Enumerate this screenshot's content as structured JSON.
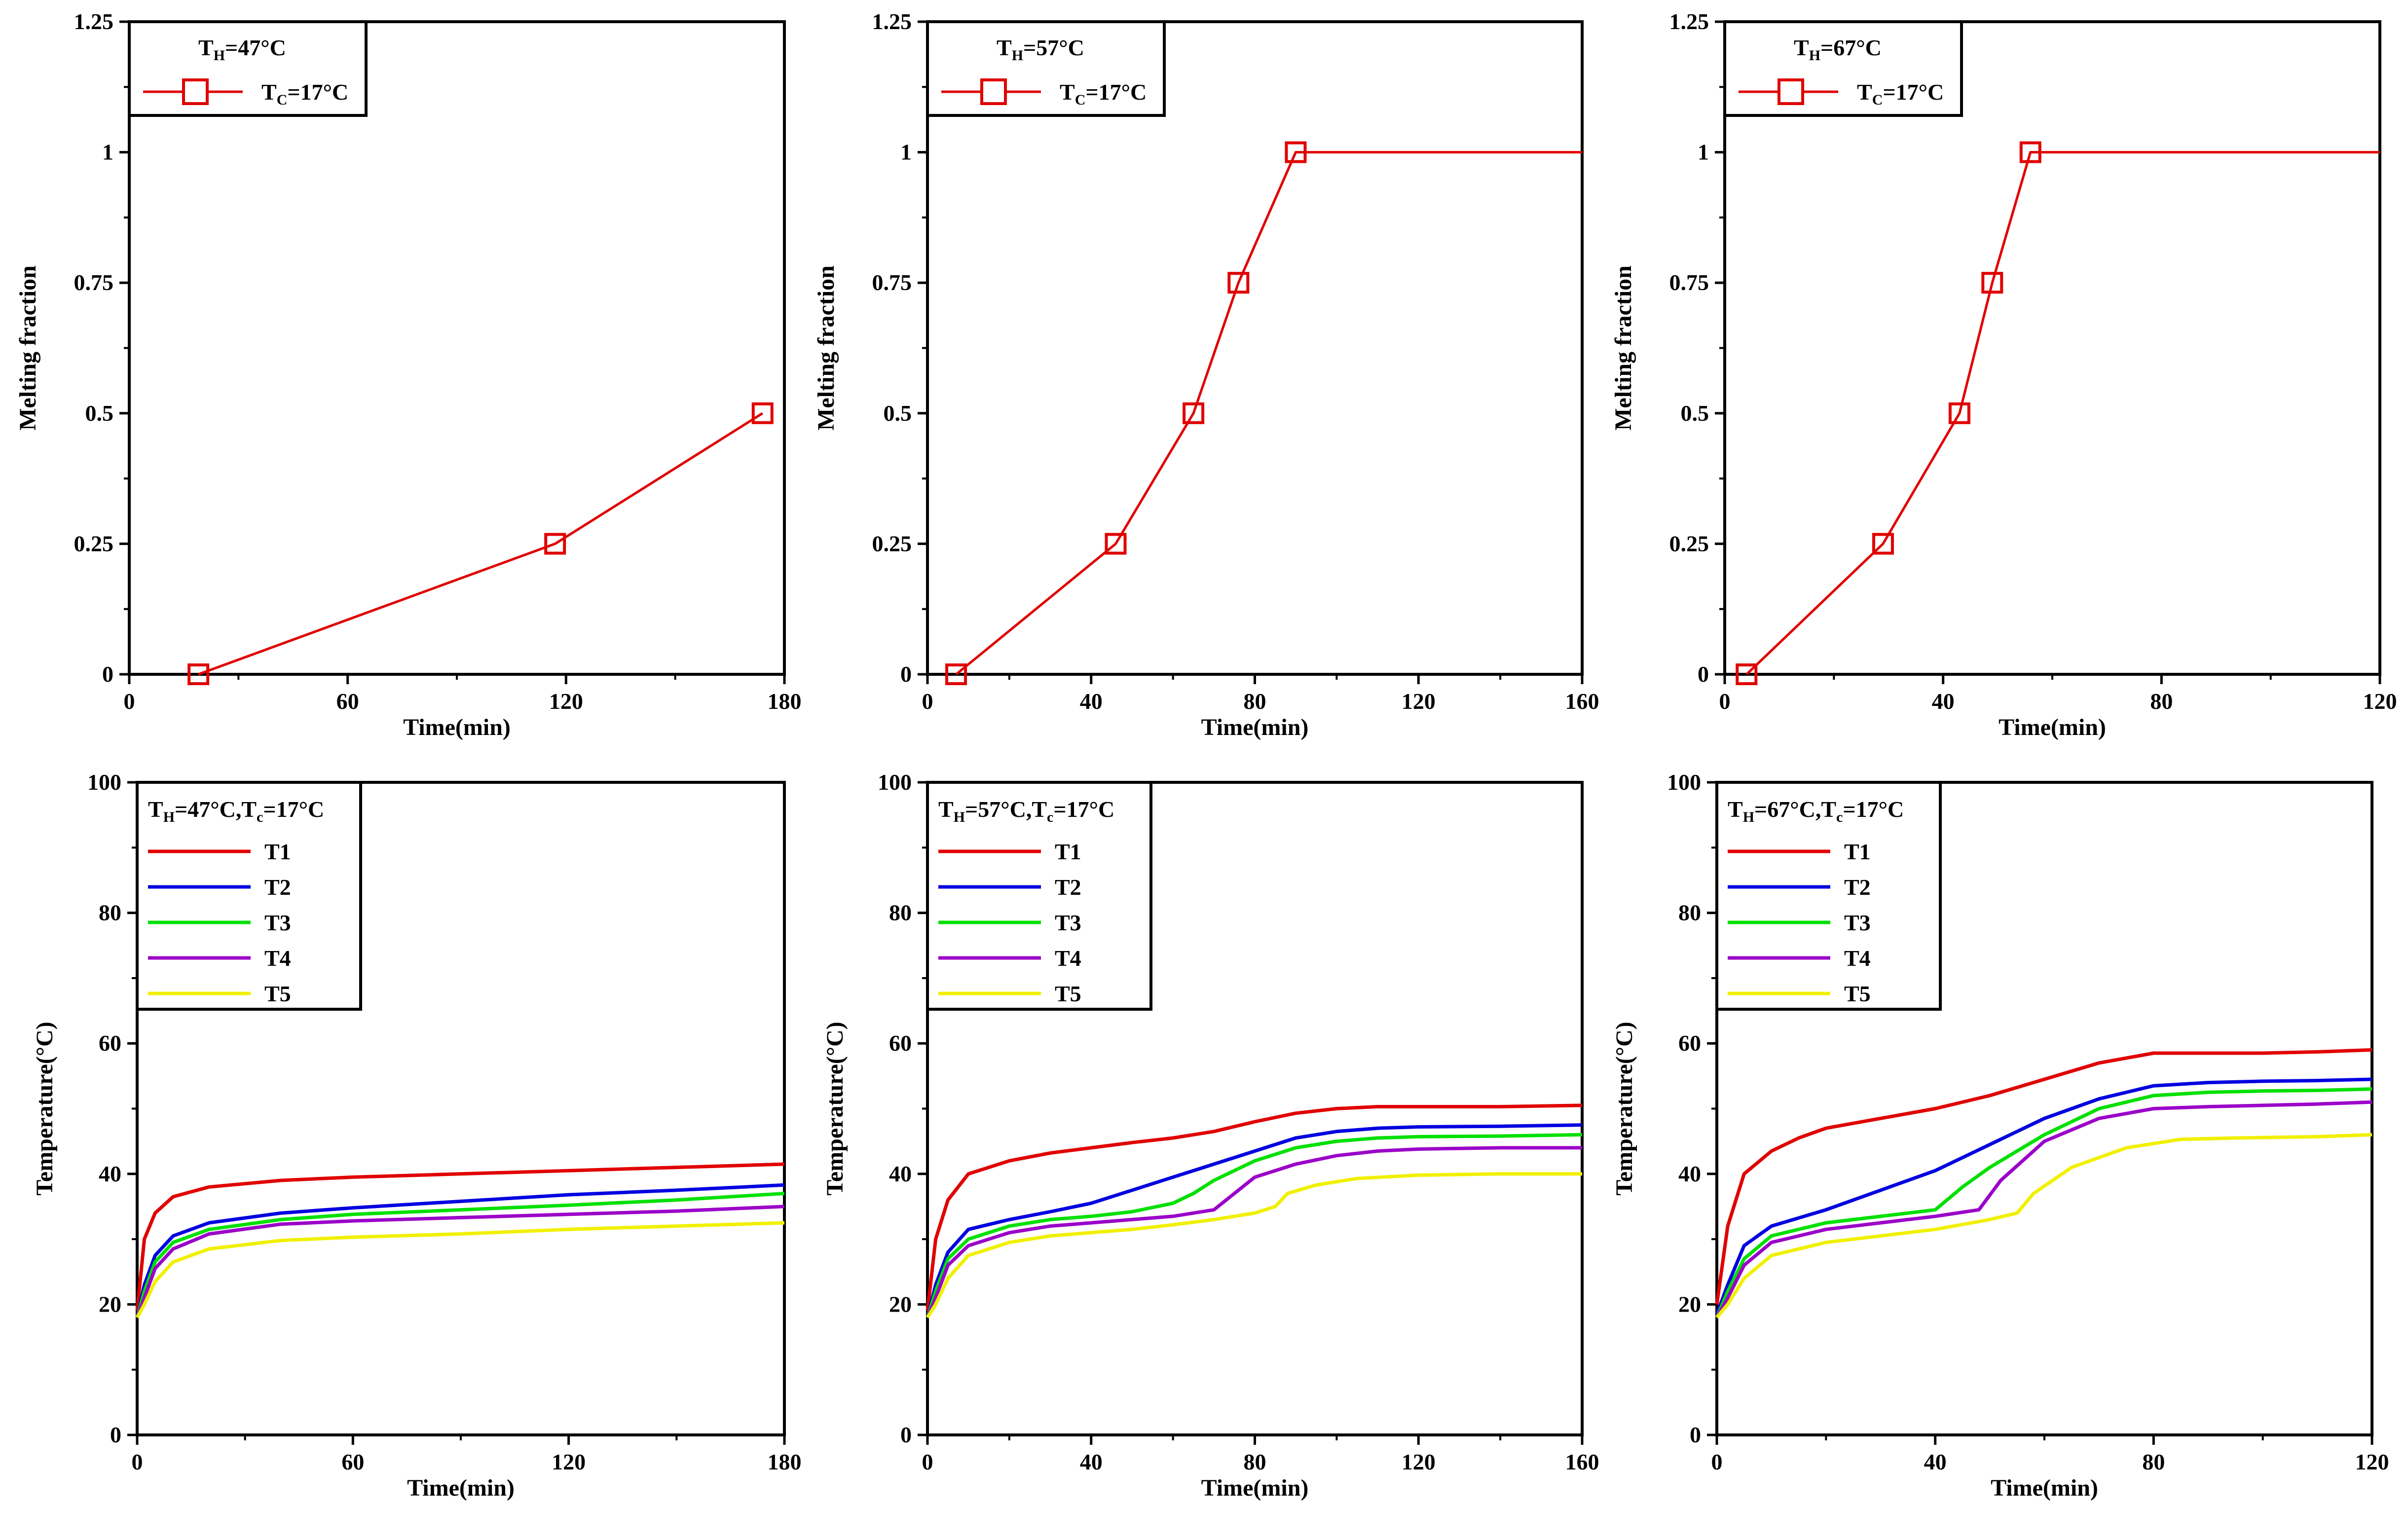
{
  "chart_data": [
    {
      "type": "line",
      "xlabel": "Time(min)",
      "ylabel": "Melting fraction",
      "xlim": [
        0,
        180
      ],
      "ylim": [
        0,
        1.25
      ],
      "xticks": [
        "0",
        "60",
        "120",
        "180"
      ],
      "yticks": [
        "0",
        "0.25",
        "0.5",
        "0.75",
        "1",
        "1.25"
      ],
      "legend": {
        "title": {
          "main": "T",
          "sub": "H",
          "rest": "=47°C"
        },
        "entries": [
          {
            "main": "T",
            "sub": "C",
            "rest": "=17°C"
          }
        ]
      },
      "series": [
        {
          "name": "TC=17°C",
          "color": "#e00000",
          "marker": "square",
          "x": [
            19,
            117,
            174
          ],
          "y": [
            0,
            0.25,
            0.5
          ]
        }
      ]
    },
    {
      "type": "line",
      "xlabel": "Time(min)",
      "ylabel": "Melting fraction",
      "xlim": [
        0,
        160
      ],
      "ylim": [
        0,
        1.25
      ],
      "xticks": [
        "0",
        "40",
        "80",
        "120",
        "160"
      ],
      "yticks": [
        "0",
        "0.25",
        "0.5",
        "0.75",
        "1",
        "1.25"
      ],
      "legend": {
        "title": {
          "main": "T",
          "sub": "H",
          "rest": "=57°C"
        },
        "entries": [
          {
            "main": "T",
            "sub": "C",
            "rest": "=17°C"
          }
        ]
      },
      "series": [
        {
          "name": "TC=17°C",
          "color": "#e00000",
          "marker": "square",
          "x": [
            7,
            46,
            65,
            76,
            90,
            160
          ],
          "y": [
            0,
            0.25,
            0.5,
            0.75,
            1,
            1
          ],
          "markers_upto": 5
        }
      ]
    },
    {
      "type": "line",
      "xlabel": "Time(min)",
      "ylabel": "Melting fraction",
      "xlim": [
        0,
        120
      ],
      "ylim": [
        0,
        1.25
      ],
      "xticks": [
        "0",
        "40",
        "80",
        "120"
      ],
      "yticks": [
        "0",
        "0.25",
        "0.5",
        "0.75",
        "1",
        "1.25"
      ],
      "legend": {
        "title": {
          "main": "T",
          "sub": "H",
          "rest": "=67°C"
        },
        "entries": [
          {
            "main": "T",
            "sub": "C",
            "rest": "=17°C"
          }
        ]
      },
      "series": [
        {
          "name": "TC=17°C",
          "color": "#e00000",
          "marker": "square",
          "x": [
            4,
            29,
            43,
            49,
            56,
            120
          ],
          "y": [
            0,
            0.25,
            0.5,
            0.75,
            1,
            1
          ],
          "markers_upto": 5
        }
      ]
    },
    {
      "type": "line",
      "xlabel": "Time(min)",
      "ylabel": "Temperature(°C)",
      "xlim": [
        0,
        180
      ],
      "ylim": [
        0,
        100
      ],
      "xticks": [
        "0",
        "60",
        "120",
        "180"
      ],
      "yticks": [
        "0",
        "20",
        "40",
        "60",
        "80",
        "100"
      ],
      "legend": {
        "title": {
          "main": "T",
          "sub": "H",
          "rest": "=47°C,T",
          "sub2": "c",
          "rest2": "=17°C"
        },
        "entries": [
          {
            "main": "T1"
          },
          {
            "main": "T2"
          },
          {
            "main": "T3"
          },
          {
            "main": "T4"
          },
          {
            "main": "T5"
          }
        ]
      },
      "series": [
        {
          "name": "T1",
          "color": "#e00000",
          "x": [
            0,
            2,
            5,
            10,
            20,
            40,
            60,
            90,
            120,
            150,
            180
          ],
          "y": [
            19,
            30,
            34,
            36.5,
            38,
            39,
            39.5,
            40,
            40.5,
            41,
            41.5
          ]
        },
        {
          "name": "T2",
          "color": "#0000e0",
          "x": [
            0,
            2,
            5,
            10,
            20,
            40,
            60,
            90,
            120,
            150,
            180
          ],
          "y": [
            18,
            23,
            27.5,
            30.5,
            32.5,
            34,
            34.8,
            35.8,
            36.8,
            37.5,
            38.3
          ]
        },
        {
          "name": "T3",
          "color": "#00e000",
          "x": [
            0,
            2,
            5,
            10,
            20,
            40,
            60,
            90,
            120,
            150,
            180
          ],
          "y": [
            18,
            22,
            26.5,
            29.5,
            31.5,
            33,
            33.8,
            34.5,
            35.2,
            36,
            37
          ]
        },
        {
          "name": "T4",
          "color": "#9a00c8",
          "x": [
            0,
            2,
            5,
            10,
            20,
            40,
            60,
            90,
            120,
            150,
            180
          ],
          "y": [
            18,
            21,
            25.5,
            28.5,
            30.8,
            32.3,
            32.8,
            33.3,
            33.8,
            34.3,
            35
          ]
        },
        {
          "name": "T5",
          "color": "#f0f000",
          "x": [
            0,
            2,
            5,
            10,
            20,
            40,
            60,
            90,
            120,
            150,
            180
          ],
          "y": [
            18,
            20,
            23.5,
            26.5,
            28.5,
            29.8,
            30.3,
            30.8,
            31.5,
            32,
            32.5
          ]
        }
      ]
    },
    {
      "type": "line",
      "xlabel": "Time(min)",
      "ylabel": "Temperature(°C)",
      "xlim": [
        0,
        160
      ],
      "ylim": [
        0,
        100
      ],
      "xticks": [
        "0",
        "40",
        "80",
        "120",
        "160"
      ],
      "yticks": [
        "0",
        "20",
        "40",
        "60",
        "80",
        "100"
      ],
      "legend": {
        "title": {
          "main": "T",
          "sub": "H",
          "rest": "=57°C,T",
          "sub2": "c",
          "rest2": "=17°C"
        },
        "entries": [
          {
            "main": "T1"
          },
          {
            "main": "T2"
          },
          {
            "main": "T3"
          },
          {
            "main": "T4"
          },
          {
            "main": "T5"
          }
        ]
      },
      "series": [
        {
          "name": "T1",
          "color": "#e00000",
          "x": [
            0,
            2,
            5,
            10,
            20,
            30,
            40,
            50,
            60,
            70,
            80,
            90,
            100,
            110,
            120,
            140,
            160
          ],
          "y": [
            19,
            30,
            36,
            40,
            42,
            43.2,
            44,
            44.8,
            45.5,
            46.5,
            48,
            49.3,
            50,
            50.3,
            50.3,
            50.3,
            50.5
          ]
        },
        {
          "name": "T2",
          "color": "#0000e0",
          "x": [
            0,
            2,
            5,
            10,
            20,
            30,
            40,
            50,
            60,
            70,
            80,
            90,
            100,
            110,
            120,
            140,
            160
          ],
          "y": [
            18,
            23,
            28,
            31.5,
            33,
            34.2,
            35.5,
            37.5,
            39.5,
            41.5,
            43.5,
            45.5,
            46.5,
            47,
            47.2,
            47.3,
            47.5
          ]
        },
        {
          "name": "T3",
          "color": "#00e000",
          "x": [
            0,
            2,
            5,
            10,
            20,
            30,
            40,
            50,
            60,
            65,
            70,
            80,
            90,
            100,
            110,
            120,
            140,
            160
          ],
          "y": [
            18,
            22,
            27,
            30,
            32,
            33,
            33.5,
            34.2,
            35.5,
            37,
            39,
            42,
            44,
            45,
            45.5,
            45.7,
            45.8,
            46
          ]
        },
        {
          "name": "T4",
          "color": "#9a00c8",
          "x": [
            0,
            2,
            5,
            10,
            20,
            30,
            40,
            50,
            60,
            70,
            75,
            80,
            90,
            100,
            110,
            120,
            140,
            160
          ],
          "y": [
            18,
            21,
            26,
            29,
            31,
            32,
            32.5,
            33,
            33.5,
            34.5,
            37,
            39.5,
            41.5,
            42.8,
            43.5,
            43.8,
            44,
            44
          ]
        },
        {
          "name": "T5",
          "color": "#f0f000",
          "x": [
            0,
            2,
            5,
            10,
            20,
            30,
            40,
            50,
            60,
            70,
            80,
            85,
            88,
            95,
            105,
            120,
            140,
            160
          ],
          "y": [
            18,
            20,
            24,
            27.5,
            29.5,
            30.5,
            31,
            31.5,
            32.2,
            33,
            34,
            35,
            37,
            38.3,
            39.3,
            39.8,
            40,
            40
          ]
        }
      ]
    },
    {
      "type": "line",
      "xlabel": "Time(min)",
      "ylabel": "Temperature(°C)",
      "xlim": [
        0,
        120
      ],
      "ylim": [
        0,
        100
      ],
      "xticks": [
        "0",
        "40",
        "80",
        "120"
      ],
      "yticks": [
        "0",
        "20",
        "40",
        "60",
        "80",
        "100"
      ],
      "legend": {
        "title": {
          "main": "T",
          "sub": "H",
          "rest": "=67°C,T",
          "sub2": "c",
          "rest2": "=17°C"
        },
        "entries": [
          {
            "main": "T1"
          },
          {
            "main": "T2"
          },
          {
            "main": "T3"
          },
          {
            "main": "T4"
          },
          {
            "main": "T5"
          }
        ]
      },
      "series": [
        {
          "name": "T1",
          "color": "#e00000",
          "x": [
            0,
            2,
            5,
            10,
            15,
            20,
            30,
            40,
            50,
            60,
            70,
            80,
            90,
            100,
            110,
            120
          ],
          "y": [
            20,
            32,
            40,
            43.5,
            45.5,
            47,
            48.5,
            50,
            52,
            54.5,
            57,
            58.5,
            58.5,
            58.5,
            58.7,
            59
          ]
        },
        {
          "name": "T2",
          "color": "#0000e0",
          "x": [
            0,
            2,
            5,
            10,
            20,
            30,
            40,
            50,
            60,
            70,
            80,
            90,
            100,
            110,
            120
          ],
          "y": [
            18.5,
            23,
            29,
            32,
            34.5,
            37.5,
            40.5,
            44.5,
            48.5,
            51.5,
            53.5,
            54,
            54.2,
            54.3,
            54.5
          ]
        },
        {
          "name": "T3",
          "color": "#00e000",
          "x": [
            0,
            2,
            5,
            10,
            20,
            30,
            40,
            45,
            50,
            60,
            70,
            80,
            90,
            100,
            110,
            120
          ],
          "y": [
            18,
            22,
            27,
            30.5,
            32.5,
            33.5,
            34.5,
            38,
            41,
            46,
            50,
            52,
            52.5,
            52.7,
            52.8,
            53
          ]
        },
        {
          "name": "T4",
          "color": "#9a00c8",
          "x": [
            0,
            2,
            5,
            10,
            20,
            30,
            40,
            48,
            52,
            60,
            70,
            80,
            90,
            100,
            110,
            120
          ],
          "y": [
            18,
            21,
            26,
            29.5,
            31.5,
            32.5,
            33.5,
            34.5,
            39,
            45,
            48.5,
            50,
            50.3,
            50.5,
            50.7,
            51
          ]
        },
        {
          "name": "T5",
          "color": "#f0f000",
          "x": [
            0,
            2,
            5,
            10,
            20,
            30,
            40,
            50,
            55,
            58,
            65,
            75,
            85,
            95,
            110,
            120
          ],
          "y": [
            18,
            20,
            24,
            27.5,
            29.5,
            30.5,
            31.5,
            33,
            34,
            37,
            41,
            44,
            45.3,
            45.5,
            45.7,
            46
          ]
        }
      ]
    }
  ]
}
